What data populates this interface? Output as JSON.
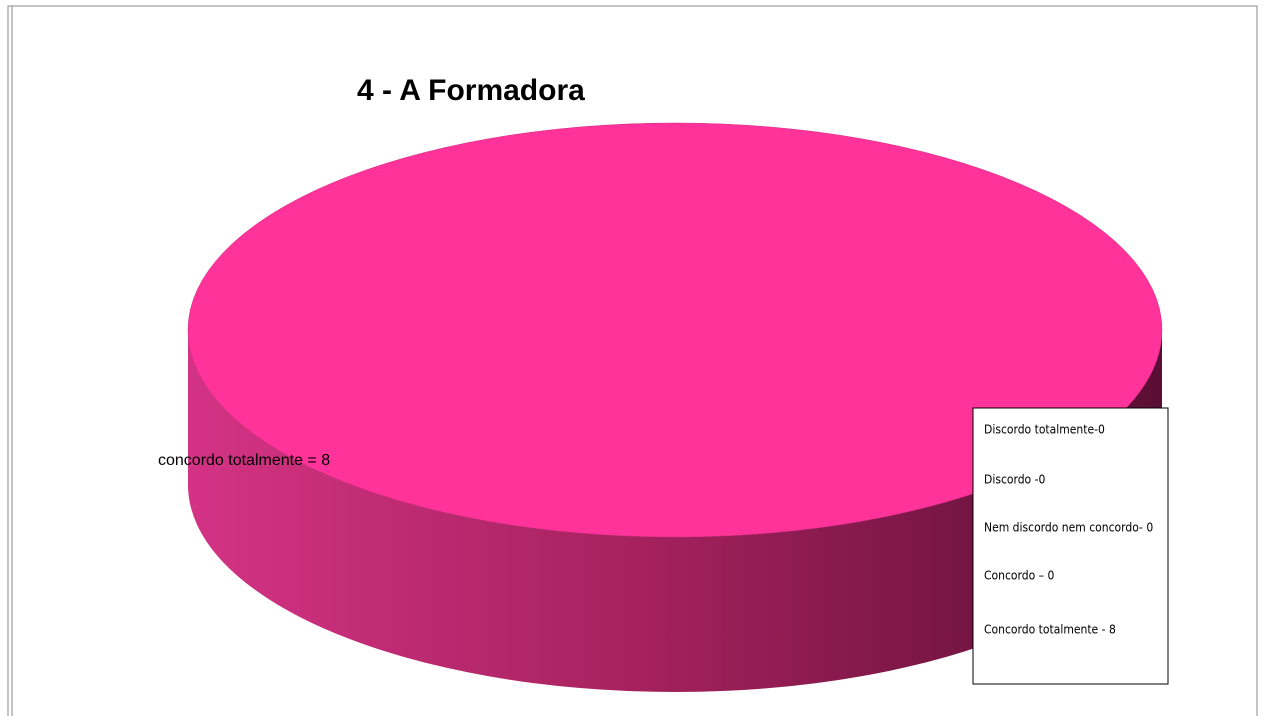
{
  "chart_data": {
    "type": "pie",
    "title": "4 - A Formadora",
    "categories": [
      "Discordo totalmente-0",
      "Discordo -0",
      "Nem discordo nem concordo- 0",
      "Concordo – 0",
      "Concordo totalmente - 8"
    ],
    "values": [
      0,
      0,
      0,
      0,
      8
    ],
    "value_labels": [
      null,
      null,
      null,
      null,
      "concordo totalmente = 8"
    ],
    "color": "#ff3399"
  }
}
